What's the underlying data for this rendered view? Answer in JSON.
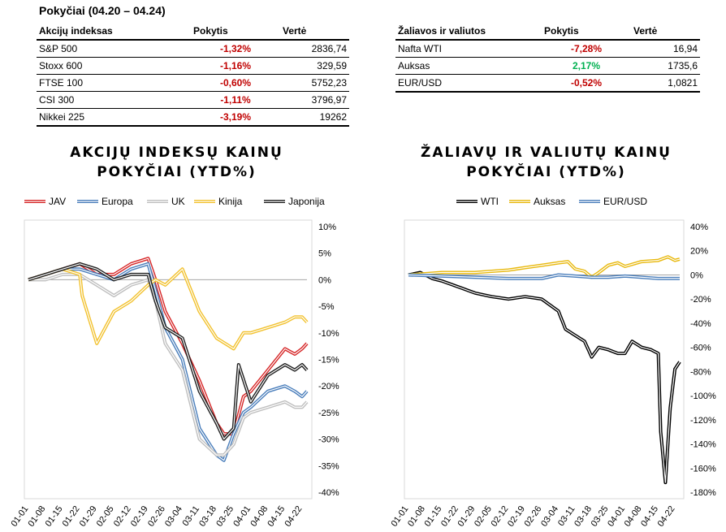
{
  "header": {
    "title": "Pokyčiai (04.20 – 04.24)"
  },
  "indices_table": {
    "headers": [
      "Akcijų indeksas",
      "Pokytis",
      "Vertė"
    ],
    "rows": [
      {
        "name": "S&P 500",
        "change": "-1,32%",
        "value": "2836,74",
        "dir": "neg"
      },
      {
        "name": "Stoxx 600",
        "change": "-1,16%",
        "value": "329,59",
        "dir": "neg"
      },
      {
        "name": "FTSE 100",
        "change": "-0,60%",
        "value": "5752,23",
        "dir": "neg"
      },
      {
        "name": "CSI 300",
        "change": "-1,11%",
        "value": "3796,97",
        "dir": "neg"
      },
      {
        "name": "Nikkei 225",
        "change": "-3,19%",
        "value": "19262",
        "dir": "neg"
      }
    ]
  },
  "commodities_table": {
    "headers": [
      "Žaliavos ir valiutos",
      "Pokytis",
      "Vertė"
    ],
    "rows": [
      {
        "name": "Nafta WTI",
        "change": "-7,28%",
        "value": "16,94",
        "dir": "neg"
      },
      {
        "name": "Auksas",
        "change": "2,17%",
        "value": "1735,6",
        "dir": "pos"
      },
      {
        "name": "EUR/USD",
        "change": "-0,52%",
        "value": "1,0821",
        "dir": "neg"
      }
    ]
  },
  "colors": {
    "JAV": "#d62728",
    "Europa": "#4a7ebb",
    "UK": "#bfbfbf",
    "Kinija": "#f2c230",
    "Japonija": "#222222",
    "WTI": "#000000",
    "Auksas": "#e8b80c",
    "EUR/USD": "#4a7ebb",
    "negative": "#c00000",
    "positive": "#00b050"
  },
  "chart_data": [
    {
      "type": "line",
      "title_line1": "AKCIJŲ INDEKSŲ KAINŲ",
      "title_line2": "POKYČIAI (YTD%)",
      "legend_position": "top",
      "ylim": [
        -40,
        10
      ],
      "yticks": [
        10,
        5,
        0,
        -5,
        -10,
        -15,
        -20,
        -25,
        -30,
        -35,
        -40
      ],
      "ytick_labels": [
        "10%",
        "5%",
        "0%",
        "-5%",
        "-10%",
        "-15%",
        "-20%",
        "-25%",
        "-30%",
        "-35%",
        "-40%"
      ],
      "xlim": [
        0,
        114
      ],
      "xticks": [
        0,
        7,
        14,
        21,
        28,
        35,
        42,
        49,
        56,
        63,
        70,
        77,
        84,
        91,
        98,
        105,
        112
      ],
      "xtick_labels": [
        "01-01",
        "01-08",
        "01-15",
        "01-22",
        "01-29",
        "02-05",
        "02-12",
        "02-19",
        "02-26",
        "03-04",
        "03-11",
        "03-18",
        "03-25",
        "04-01",
        "04-08",
        "04-15",
        "04-22"
      ],
      "series": [
        {
          "name": "JAV",
          "x": [
            0,
            7,
            14,
            21,
            28,
            35,
            42,
            49,
            52,
            56,
            63,
            70,
            77,
            80,
            84,
            88,
            91,
            98,
            105,
            109,
            112,
            114
          ],
          "values": [
            0,
            1,
            2,
            3,
            1,
            1,
            3,
            4,
            0,
            -6,
            -12,
            -19,
            -27,
            -29,
            -29,
            -22,
            -21,
            -17,
            -13,
            -14,
            -13,
            -12
          ]
        },
        {
          "name": "Europa",
          "x": [
            0,
            7,
            14,
            21,
            28,
            35,
            42,
            49,
            52,
            56,
            63,
            70,
            77,
            80,
            84,
            88,
            91,
            98,
            105,
            109,
            112,
            114
          ],
          "values": [
            0,
            1,
            2,
            2,
            1,
            0,
            2,
            3,
            -2,
            -9,
            -15,
            -28,
            -33,
            -34,
            -29,
            -25,
            -24,
            -21,
            -20,
            -21,
            -22,
            -21
          ]
        },
        {
          "name": "UK",
          "x": [
            0,
            7,
            14,
            21,
            28,
            35,
            42,
            49,
            52,
            56,
            63,
            70,
            77,
            80,
            84,
            88,
            91,
            98,
            105,
            109,
            112,
            114
          ],
          "values": [
            0,
            0,
            1,
            1,
            -1,
            -3,
            -1,
            0,
            -4,
            -12,
            -17,
            -30,
            -33,
            -33,
            -31,
            -26,
            -25,
            -24,
            -23,
            -24,
            -24,
            -23
          ]
        },
        {
          "name": "Kinija",
          "x": [
            0,
            7,
            14,
            21,
            22,
            28,
            35,
            42,
            49,
            52,
            56,
            63,
            70,
            77,
            84,
            88,
            91,
            98,
            105,
            109,
            112,
            114
          ],
          "values": [
            0,
            1,
            2,
            1,
            -3,
            -12,
            -6,
            -4,
            -1,
            0,
            -1,
            2,
            -6,
            -11,
            -13,
            -10,
            -10,
            -9,
            -8,
            -7,
            -7,
            -8
          ]
        },
        {
          "name": "Japonija",
          "x": [
            0,
            7,
            14,
            21,
            28,
            35,
            42,
            49,
            52,
            56,
            63,
            70,
            77,
            80,
            84,
            86,
            91,
            98,
            105,
            109,
            112,
            114
          ],
          "values": [
            0,
            1,
            2,
            3,
            2,
            0,
            1,
            1,
            -4,
            -9,
            -11,
            -21,
            -27,
            -30,
            -28,
            -16,
            -23,
            -18,
            -16,
            -17,
            -16,
            -17
          ]
        }
      ]
    },
    {
      "type": "line",
      "title_line1": "ŽALIAVŲ IR VALIUTŲ KAINŲ",
      "title_line2": "POKYČIAI (YTD%)",
      "legend_position": "top",
      "ylim": [
        -180,
        40
      ],
      "yticks": [
        40,
        20,
        0,
        -20,
        -40,
        -60,
        -80,
        -100,
        -120,
        -140,
        -160,
        -180
      ],
      "ytick_labels": [
        "40%",
        "20%",
        "0%",
        "-20%",
        "-40%",
        "-60%",
        "-80%",
        "-100%",
        "-120%",
        "-140%",
        "-160%",
        "-180%"
      ],
      "xlim": [
        0,
        114
      ],
      "xticks": [
        0,
        7,
        14,
        21,
        28,
        35,
        42,
        49,
        56,
        63,
        70,
        77,
        84,
        91,
        98,
        105,
        112
      ],
      "xtick_labels": [
        "01-01",
        "01-08",
        "01-15",
        "01-22",
        "01-29",
        "02-05",
        "02-12",
        "02-19",
        "02-26",
        "03-04",
        "03-11",
        "03-18",
        "03-25",
        "04-01",
        "04-08",
        "04-15",
        "04-22"
      ],
      "series": [
        {
          "name": "WTI",
          "x": [
            0,
            5,
            10,
            14,
            21,
            28,
            35,
            42,
            49,
            56,
            63,
            66,
            70,
            74,
            77,
            80,
            84,
            88,
            91,
            94,
            98,
            102,
            105,
            106,
            108,
            110,
            112,
            114
          ],
          "values": [
            0,
            2,
            -3,
            -5,
            -10,
            -15,
            -18,
            -20,
            -18,
            -20,
            -30,
            -45,
            -50,
            -55,
            -68,
            -60,
            -62,
            -65,
            -65,
            -55,
            -60,
            -62,
            -65,
            -130,
            -172,
            -110,
            -78,
            -72
          ]
        },
        {
          "name": "Auksas",
          "x": [
            0,
            7,
            14,
            21,
            28,
            35,
            42,
            49,
            56,
            63,
            67,
            70,
            74,
            77,
            80,
            84,
            88,
            91,
            98,
            105,
            109,
            112,
            114
          ],
          "values": [
            0,
            1,
            2,
            2,
            2,
            3,
            4,
            6,
            8,
            10,
            11,
            5,
            3,
            -2,
            2,
            8,
            10,
            7,
            11,
            12,
            15,
            12,
            13
          ]
        },
        {
          "name": "EUR/USD",
          "x": [
            0,
            14,
            28,
            42,
            56,
            63,
            70,
            77,
            84,
            91,
            98,
            105,
            114
          ],
          "values": [
            0,
            -1,
            -2,
            -3,
            -3,
            0,
            -1,
            -2,
            -2,
            -1,
            -2,
            -3,
            -3
          ]
        }
      ]
    }
  ]
}
